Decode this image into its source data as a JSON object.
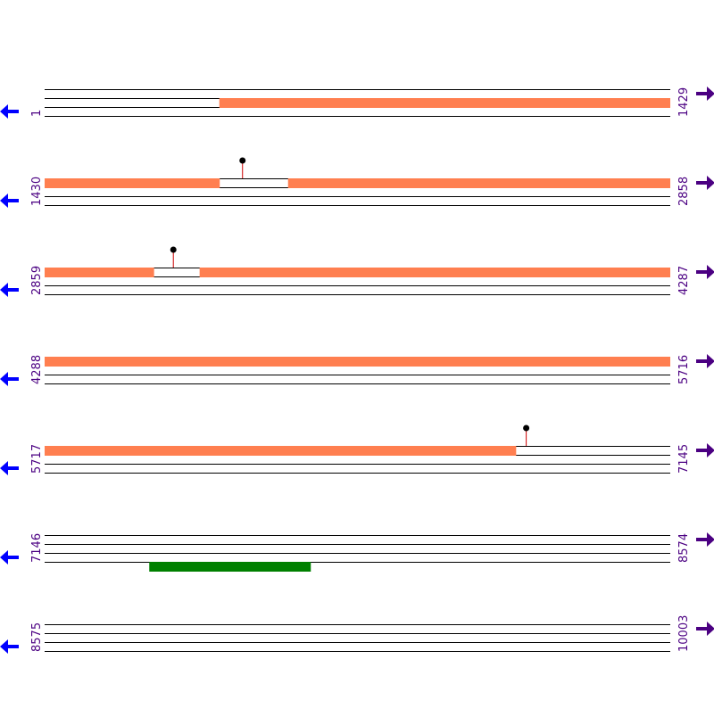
{
  "colors": {
    "line": "#000000",
    "orf_fwd": "#FF7F50",
    "orf_rev": "#008000",
    "marker_stem": "#CC0000",
    "marker_dot": "#000000",
    "label": "#4B0082",
    "left_arrow": "#0000FF",
    "right_arrow": "#4B0082"
  },
  "icons": {
    "left": "arrow-left-icon",
    "right": "arrow-right-icon"
  },
  "bases_per_row": 1429,
  "rows": [
    {
      "start_label": "1",
      "end_label": "1429",
      "start": 1,
      "end": 1429,
      "features": [
        {
          "strand": 1,
          "start": 400,
          "end": 1429,
          "kind": "orf"
        }
      ],
      "markers": []
    },
    {
      "start_label": "1430",
      "end_label": "2858",
      "start": 1430,
      "end": 2858,
      "features": [
        {
          "strand": 0,
          "start": 1430,
          "end": 1829,
          "kind": "orf"
        },
        {
          "strand": 0,
          "start": 1986,
          "end": 2858,
          "kind": "orf"
        }
      ],
      "markers": [
        {
          "strand": 0,
          "position": 1882
        }
      ]
    },
    {
      "start_label": "2859",
      "end_label": "4287",
      "start": 2859,
      "end": 4287,
      "features": [
        {
          "strand": 0,
          "start": 2859,
          "end": 3108,
          "kind": "orf"
        },
        {
          "strand": 0,
          "start": 3213,
          "end": 4287,
          "kind": "orf"
        }
      ],
      "markers": [
        {
          "strand": 0,
          "position": 3153
        }
      ]
    },
    {
      "start_label": "4288",
      "end_label": "5716",
      "start": 4288,
      "end": 5716,
      "features": [
        {
          "strand": 0,
          "start": 4288,
          "end": 5716,
          "kind": "orf"
        }
      ],
      "markers": []
    },
    {
      "start_label": "5717",
      "end_label": "7145",
      "start": 5717,
      "end": 7145,
      "features": [
        {
          "strand": 0,
          "start": 5717,
          "end": 6793,
          "kind": "orf"
        }
      ],
      "markers": [
        {
          "strand": 0,
          "position": 6817
        }
      ]
    },
    {
      "start_label": "7146",
      "end_label": "8574",
      "start": 7146,
      "end": 8574,
      "features": [
        {
          "strand": 3,
          "start": 7385,
          "end": 7753,
          "kind": "orf_rev"
        }
      ],
      "markers": []
    },
    {
      "start_label": "8575",
      "end_label": "10003",
      "start": 8575,
      "end": 10003,
      "features": [],
      "markers": []
    }
  ]
}
